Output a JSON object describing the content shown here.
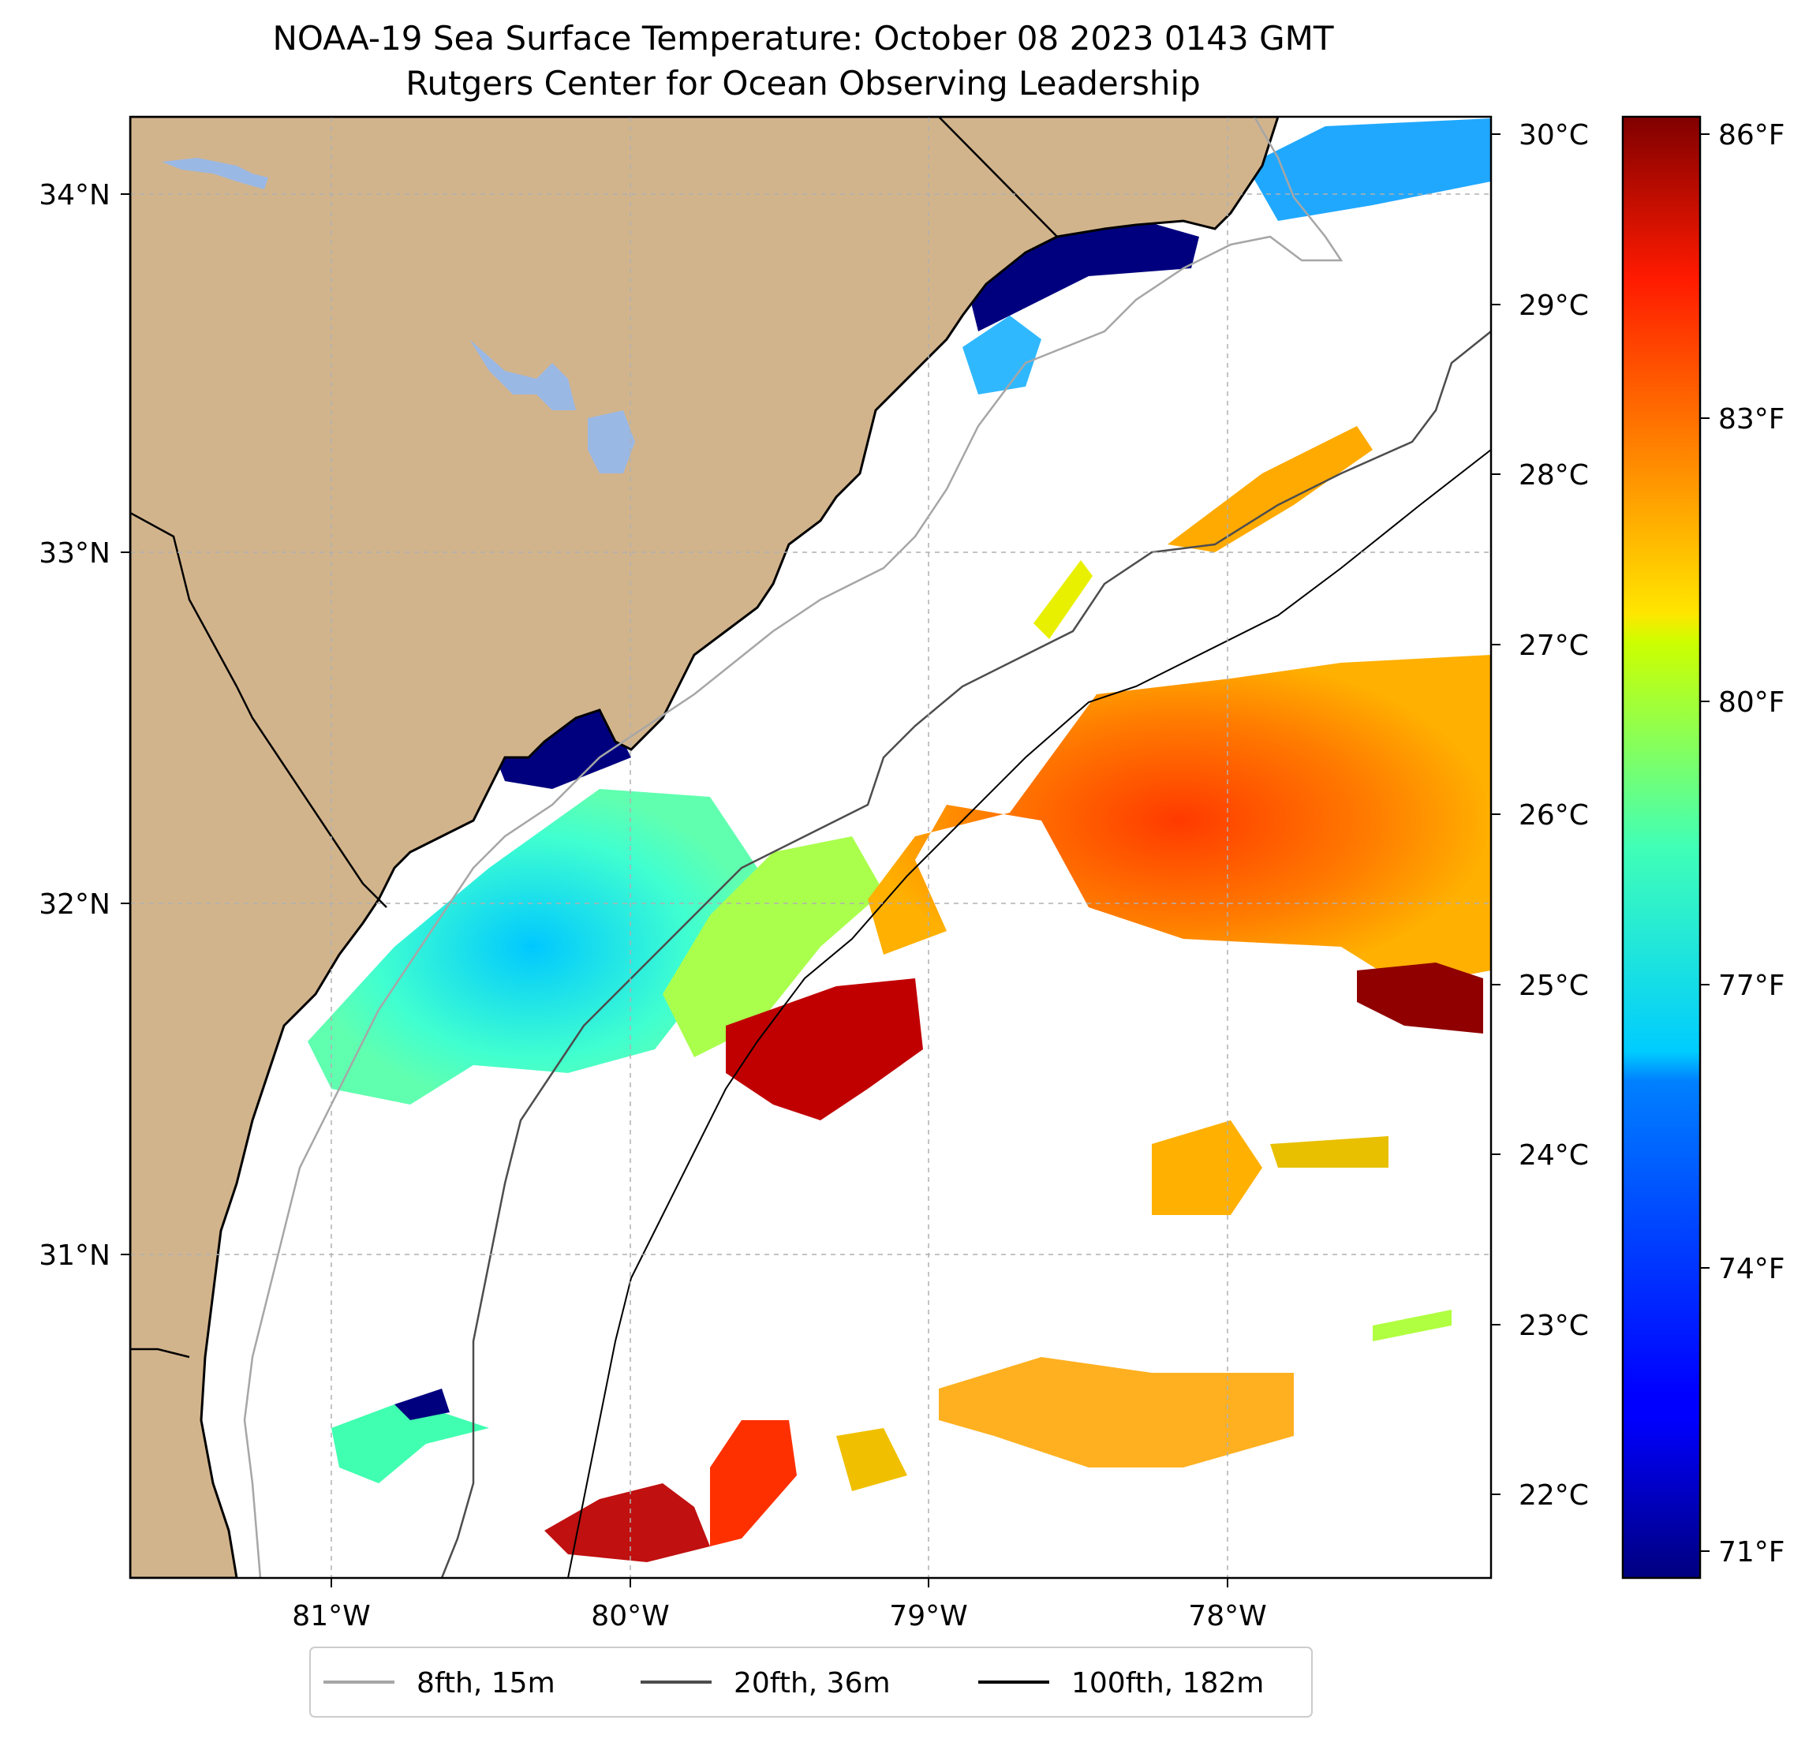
{
  "title": {
    "line1": "NOAA-19 Sea Surface Temperature: October 08 2023 0143 GMT",
    "line2": "Rutgers Center for Ocean Observing Leadership"
  },
  "map": {
    "lon_ticks": [
      "81°W",
      "80°W",
      "79°W",
      "78°W"
    ],
    "lat_ticks": [
      "34°N",
      "33°N",
      "32°N",
      "31°N"
    ],
    "colors": {
      "land": "#d2b48c",
      "lake": "#9ab8e4",
      "coast": "#000000",
      "grid": "#b0b0b0",
      "isobath_8fth": "#a6a6a6",
      "isobath_20fth": "#4d4d4d",
      "isobath_100fth": "#000000"
    }
  },
  "colorbar": {
    "celsius_ticks": [
      "30°C",
      "29°C",
      "28°C",
      "27°C",
      "26°C",
      "25°C",
      "24°C",
      "23°C",
      "22°C"
    ],
    "fahrenheit_ticks": [
      "86°F",
      "83°F",
      "80°F",
      "77°F",
      "74°F",
      "71°F"
    ],
    "colormap": "jet"
  },
  "legend": {
    "items": [
      {
        "label": "8fth, 15m",
        "color": "#a6a6a6"
      },
      {
        "label": "20fth, 36m",
        "color": "#4d4d4d"
      },
      {
        "label": "100fth, 182m",
        "color": "#000000"
      }
    ]
  }
}
